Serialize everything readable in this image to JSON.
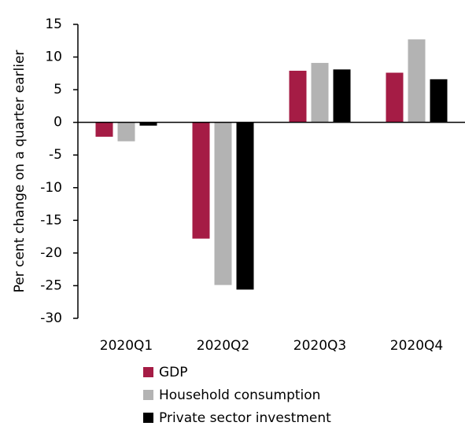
{
  "chart_data": {
    "type": "bar",
    "y_label": "Per cent change on a quarter earlier",
    "categories": [
      "2020Q1",
      "2020Q2",
      "2020Q3",
      "2020Q4"
    ],
    "series": [
      {
        "name": "GDP",
        "color": "#a51c45",
        "values": [
          -2.2,
          -17.8,
          7.9,
          7.6
        ]
      },
      {
        "name": "Household consumption",
        "color": "#b3b3b3",
        "values": [
          -2.9,
          -24.9,
          9.1,
          12.7
        ]
      },
      {
        "name": "Private sector investment",
        "color": "#000000",
        "values": [
          -0.5,
          -25.6,
          8.1,
          6.6
        ]
      }
    ],
    "ylim": [
      -30,
      15
    ],
    "yticks": [
      -30,
      -25,
      -20,
      -15,
      -10,
      -5,
      0,
      5,
      10,
      15
    ]
  }
}
